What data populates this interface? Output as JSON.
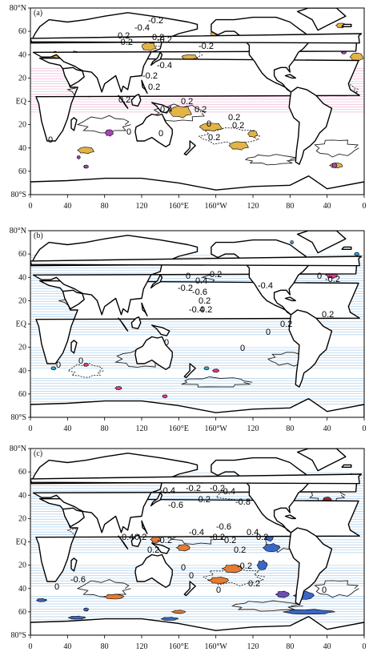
{
  "figure": {
    "panels": [
      {
        "label": "(a)",
        "contour_labels": [
          "-0.2",
          "-0.4",
          "-0.2",
          "0.2",
          "-0.2",
          "0.2",
          "-0.2",
          "-0.4",
          "-0.2",
          "0.2",
          "0.2",
          "0.4",
          "0.2",
          "0.2",
          "0.2",
          "0.2",
          "0.2",
          "0",
          "0",
          "0",
          "0"
        ],
        "shading": "orange and purple positive regions, pink hatched tropics"
      },
      {
        "label": "(b)",
        "contour_labels": [
          "0",
          "0.2",
          "0.4",
          "-0.2",
          "-0.6",
          "0.2",
          "-0.4",
          "0.2",
          "-0.4",
          "0",
          "-0.2",
          "0.2",
          "0.2",
          "0",
          "0",
          "0",
          "0",
          "0"
        ],
        "shading": "cyan and magenta regions"
      },
      {
        "label": "(c)",
        "contour_labels": [
          "-0.2",
          "-0.2",
          "-0.4",
          "-0.6",
          "-0.2",
          "-0.4",
          "-0.8",
          "-0.6",
          "-0.4",
          "-0.2",
          "0.2",
          "0.4",
          "0.2",
          "0.2",
          "-0.2",
          "0.2",
          "0.4",
          "0.2",
          "0",
          "0",
          "-0.2",
          "0",
          "0.2",
          "-0.6",
          "0",
          "0"
        ],
        "shading": "orange and blue regions"
      }
    ],
    "lat_ticks": [
      "80°N",
      "60",
      "40",
      "20",
      "EQ",
      "20",
      "40",
      "60",
      "80°S"
    ],
    "lon_ticks": [
      "0",
      "40",
      "80",
      "120",
      "160°E",
      "160°W",
      "120",
      "80",
      "40",
      "0"
    ],
    "colors": {
      "orange_a": "#e3b347",
      "purple": "#a545b5",
      "pink_hatch": "#f2b3d6",
      "cyan": "#2fa8db",
      "magenta": "#e23a8a",
      "light_blue_hatch": "#a9cdea",
      "orange_c": "#e67b33",
      "blue_c": "#3b66c4",
      "dark_red": "#9b2b2b",
      "violet": "#6a4fb0"
    }
  }
}
